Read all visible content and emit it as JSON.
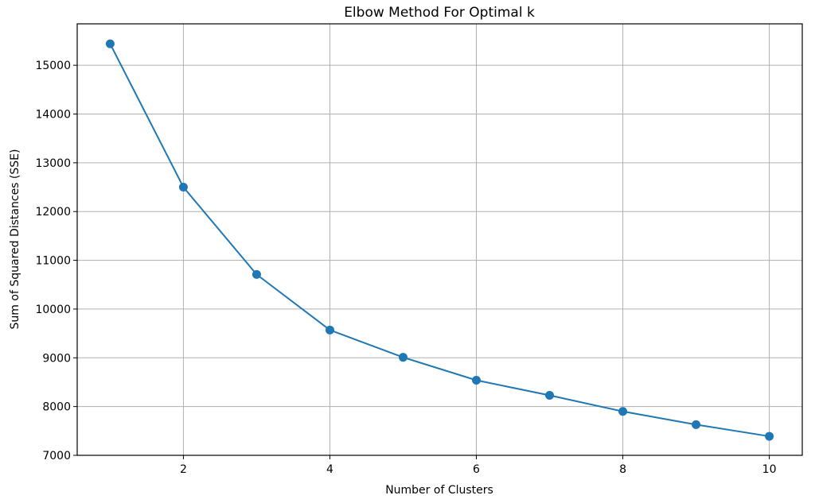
{
  "chart_data": {
    "type": "line",
    "title": "Elbow Method For Optimal k",
    "xlabel": "Number of Clusters",
    "ylabel": "Sum of Squared Distances (SSE)",
    "x": [
      1,
      2,
      3,
      4,
      5,
      6,
      7,
      8,
      9,
      10
    ],
    "series": [
      {
        "values": [
          15440,
          12500,
          10710,
          9570,
          9010,
          8540,
          8230,
          7900,
          7630,
          7390
        ],
        "color": "#1f77b4",
        "marker": "circle"
      }
    ],
    "xlim": [
      0.55,
      10.45
    ],
    "ylim": [
      7000,
      15850
    ],
    "xticks": [
      2,
      4,
      6,
      8,
      10
    ],
    "yticks": [
      7000,
      8000,
      9000,
      10000,
      11000,
      12000,
      13000,
      14000,
      15000
    ],
    "grid": true
  }
}
